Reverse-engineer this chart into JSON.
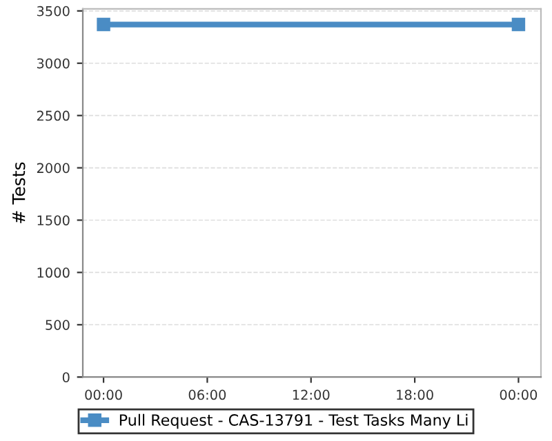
{
  "chart_data": {
    "type": "line",
    "ylabel": "# Tests",
    "x": [
      0,
      24
    ],
    "series": [
      {
        "name": "Pull Request - CAS-13791 - Test Tasks Many Li",
        "color": "#4a8cc4",
        "values": [
          3370,
          3370
        ]
      }
    ],
    "xlim": [
      -1.2,
      25.3
    ],
    "xticks": [
      {
        "value": 0,
        "label": "00:00"
      },
      {
        "value": 6,
        "label": "06:00"
      },
      {
        "value": 12,
        "label": "12:00"
      },
      {
        "value": 18,
        "label": "18:00"
      },
      {
        "value": 24,
        "label": "00:00"
      }
    ],
    "ylim": [
      0,
      3520
    ],
    "yticks": [
      0,
      500,
      1000,
      1500,
      2000,
      2500,
      3000,
      3500
    ],
    "grid": "y",
    "legend": "bottom",
    "marker": "square",
    "line_style": "solid"
  }
}
